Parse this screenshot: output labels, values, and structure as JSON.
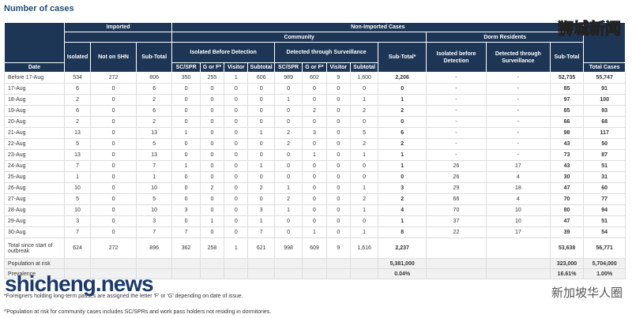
{
  "title": "Number of cases",
  "header": {
    "imported": "Imported",
    "non_imported": "Non-Imported Cases",
    "community": "Community",
    "dorm": "Dorm Residents",
    "isolated": "Isolated",
    "not_on_shn": "Not on SHN",
    "imp_subtotal": "Sub-Total",
    "ibd": "Isolated Before Detection",
    "dts": "Detected through Surveillance",
    "comm_subtotal": "Sub-Total*",
    "dorm_ibd": "Isolated before Detection",
    "dorm_dts": "Detected through Surveillance",
    "dorm_subtotal": "Sub-Total",
    "date": "Date",
    "total": "Total Cases",
    "sub": [
      "SC/SPR",
      "G or F*",
      "Visitor",
      "Subtotal",
      "SC/SPR",
      "G or F*",
      "Visitor",
      "Subtotal"
    ]
  },
  "table": {
    "rows": [
      [
        "Before 17-Aug",
        "534",
        "272",
        "806",
        "350",
        "255",
        "1",
        "606",
        "989",
        "602",
        "9",
        "1,600",
        "2,206",
        "-",
        "-",
        "52,735",
        "55,747"
      ],
      [
        "17-Aug",
        "6",
        "0",
        "6",
        "0",
        "0",
        "0",
        "0",
        "0",
        "0",
        "0",
        "0",
        "0",
        "-",
        "-",
        "85",
        "91"
      ],
      [
        "18-Aug",
        "2",
        "0",
        "2",
        "0",
        "0",
        "0",
        "0",
        "1",
        "0",
        "0",
        "1",
        "1",
        "-",
        "-",
        "97",
        "100"
      ],
      [
        "19-Aug",
        "6",
        "0",
        "6",
        "0",
        "0",
        "0",
        "0",
        "0",
        "2",
        "0",
        "2",
        "2",
        "-",
        "-",
        "85",
        "93"
      ],
      [
        "20-Aug",
        "2",
        "0",
        "2",
        "0",
        "0",
        "0",
        "0",
        "0",
        "0",
        "0",
        "0",
        "0",
        "-",
        "-",
        "66",
        "68"
      ],
      [
        "21-Aug",
        "13",
        "0",
        "13",
        "1",
        "0",
        "0",
        "1",
        "2",
        "3",
        "0",
        "5",
        "6",
        "-",
        "-",
        "98",
        "117"
      ],
      [
        "22-Aug",
        "5",
        "0",
        "5",
        "0",
        "0",
        "0",
        "0",
        "2",
        "0",
        "0",
        "2",
        "2",
        "-",
        "-",
        "43",
        "50"
      ],
      [
        "23-Aug",
        "13",
        "0",
        "13",
        "0",
        "0",
        "0",
        "0",
        "0",
        "1",
        "0",
        "1",
        "1",
        "-",
        "-",
        "73",
        "87"
      ],
      [
        "24-Aug",
        "7",
        "0",
        "7",
        "1",
        "0",
        "0",
        "1",
        "0",
        "0",
        "0",
        "0",
        "1",
        "26",
        "17",
        "43",
        "51"
      ],
      [
        "25-Aug",
        "1",
        "0",
        "1",
        "0",
        "0",
        "0",
        "0",
        "0",
        "0",
        "0",
        "0",
        "0",
        "26",
        "4",
        "30",
        "31"
      ],
      [
        "26-Aug",
        "10",
        "0",
        "10",
        "0",
        "2",
        "0",
        "2",
        "1",
        "0",
        "0",
        "1",
        "3",
        "29",
        "18",
        "47",
        "60"
      ],
      [
        "27-Aug",
        "5",
        "0",
        "5",
        "0",
        "0",
        "0",
        "0",
        "2",
        "0",
        "0",
        "2",
        "2",
        "66",
        "4",
        "70",
        "77"
      ],
      [
        "28-Aug",
        "10",
        "0",
        "10",
        "3",
        "0",
        "0",
        "3",
        "1",
        "0",
        "0",
        "1",
        "4",
        "70",
        "10",
        "80",
        "94"
      ],
      [
        "29-Aug",
        "3",
        "0",
        "3",
        "0",
        "1",
        "0",
        "1",
        "0",
        "0",
        "0",
        "0",
        "1",
        "37",
        "10",
        "47",
        "51"
      ],
      [
        "30-Aug",
        "7",
        "0",
        "7",
        "7",
        "0",
        "0",
        "7",
        "0",
        "1",
        "0",
        "1",
        "8",
        "22",
        "17",
        "39",
        "54"
      ],
      [
        "Total since start of outbreak",
        "624",
        "272",
        "896",
        "362",
        "258",
        "1",
        "621",
        "998",
        "609",
        "9",
        "1,616",
        "2,237",
        null,
        null,
        "53,638",
        "56,771"
      ],
      [
        "Population at risk",
        null,
        null,
        null,
        null,
        null,
        null,
        null,
        null,
        null,
        null,
        null,
        "5,381,000",
        null,
        null,
        "323,000",
        "5,704,000"
      ],
      [
        "Prevalence",
        null,
        null,
        null,
        null,
        null,
        null,
        null,
        null,
        null,
        null,
        null,
        "0.04%",
        null,
        null,
        "16.61%",
        "1.00%"
      ]
    ]
  },
  "footnotes": [
    "*Foreigners holding long-term passes are assigned the letter 'F' or 'G' depending on date of issue.",
    "^Population at risk for community cases includes SC/SPRs and work pass holders not residing in dormitories."
  ],
  "watermarks": [
    "狮城新闻",
    "shicheng.news",
    "新加坡华人圈"
  ]
}
